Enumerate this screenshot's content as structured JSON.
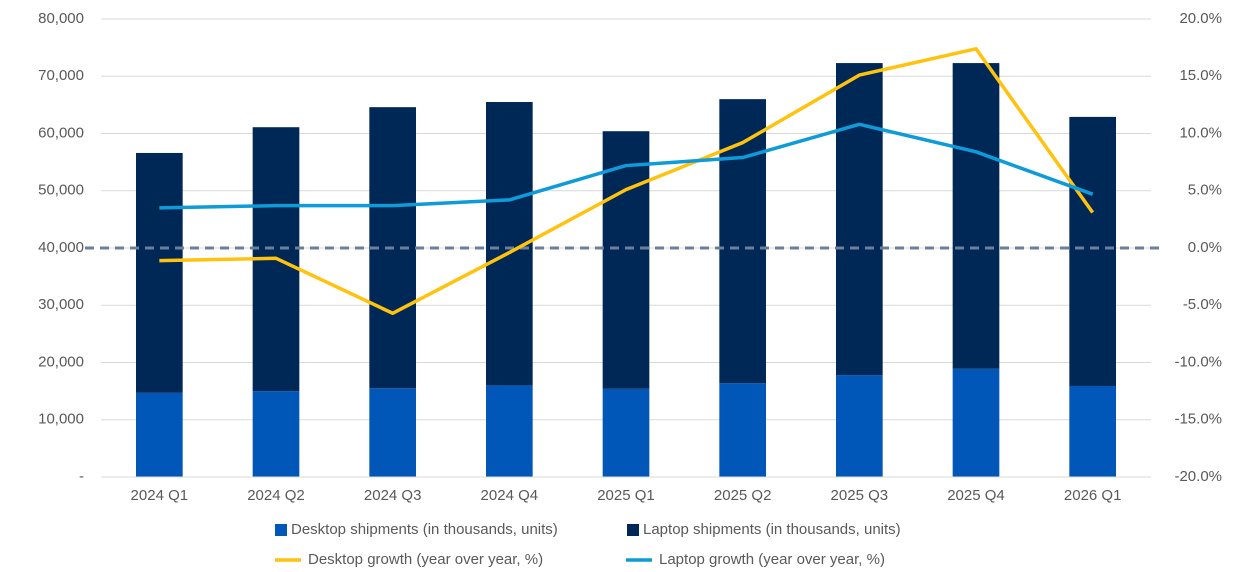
{
  "chart_data": {
    "type": "bar",
    "stacked": true,
    "categories": [
      "2024 Q1",
      "2024 Q2",
      "2024 Q3",
      "2024 Q4",
      "2025 Q1",
      "2025 Q2",
      "2025 Q3",
      "2025 Q4",
      "2026 Q1"
    ],
    "series": [
      {
        "name": "Desktop shipments (in thousands, units)",
        "type": "bar",
        "color": "#0057b8",
        "values": [
          14700,
          15000,
          15500,
          16000,
          15400,
          16400,
          17800,
          18900,
          15900
        ]
      },
      {
        "name": "Laptop shipments (in thousands, units)",
        "type": "bar",
        "color": "#002856",
        "values": [
          41900,
          46100,
          49100,
          49500,
          45000,
          49600,
          54500,
          53400,
          47000
        ]
      },
      {
        "name": "Desktop growth (year over year, %)",
        "type": "line",
        "axis": "y2",
        "color": "#ffc20e",
        "values": [
          -1.1,
          -0.9,
          -5.7,
          -0.4,
          5.1,
          9.2,
          15.1,
          17.4,
          3.1
        ]
      },
      {
        "name": "Laptop growth (year over year, %)",
        "type": "line",
        "axis": "y2",
        "color": "#0e9bd8",
        "values": [
          3.5,
          3.7,
          3.7,
          4.2,
          7.2,
          7.9,
          10.8,
          8.4,
          4.7
        ]
      }
    ],
    "ylim": [
      0,
      80000
    ],
    "yticks": [
      {
        "value": 0,
        "label": "-"
      },
      {
        "value": 10000,
        "label": "10,000"
      },
      {
        "value": 20000,
        "label": "20,000"
      },
      {
        "value": 30000,
        "label": "30,000"
      },
      {
        "value": 40000,
        "label": "40,000"
      },
      {
        "value": 50000,
        "label": "50,000"
      },
      {
        "value": 60000,
        "label": "60,000"
      },
      {
        "value": 70000,
        "label": "70,000"
      },
      {
        "value": 80000,
        "label": "80,000"
      }
    ],
    "y2lim": [
      -20,
      20
    ],
    "y2ticks": [
      {
        "value": -20,
        "label": "-20.0%"
      },
      {
        "value": -15,
        "label": "-15.0%"
      },
      {
        "value": -10,
        "label": "-10.0%"
      },
      {
        "value": -5,
        "label": "-5.0%"
      },
      {
        "value": 0,
        "label": "0.0%"
      },
      {
        "value": 5,
        "label": "5.0%"
      },
      {
        "value": 10,
        "label": "10.0%"
      },
      {
        "value": 15,
        "label": "15.0%"
      },
      {
        "value": 20,
        "label": "20.0%"
      }
    ],
    "reference_line": {
      "value": 0,
      "axis": "y2",
      "color": "#6b7f99"
    },
    "grid": true,
    "legend": "bottom"
  }
}
